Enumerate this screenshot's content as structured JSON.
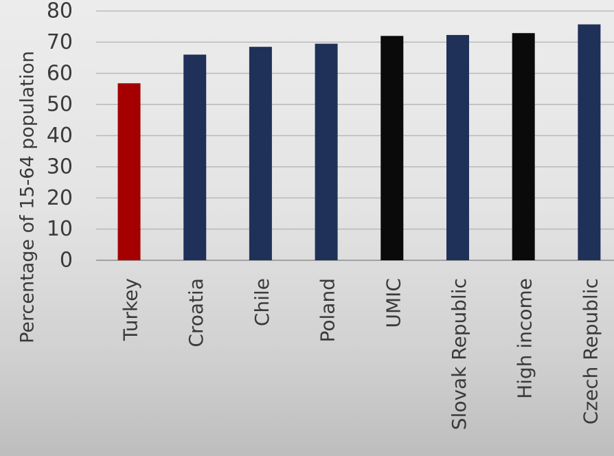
{
  "chart_data": {
    "type": "bar",
    "title": "",
    "xlabel": "",
    "ylabel": "Percentage of 15-64 population",
    "ylim": [
      0,
      80
    ],
    "yticks": [
      0,
      10,
      20,
      30,
      40,
      50,
      60,
      70,
      80
    ],
    "grid": true,
    "categories": [
      "Turkey",
      "Croatia",
      "Chile",
      "Poland",
      "UMIC",
      "Slovak Republic",
      "High income",
      "Czech Republic"
    ],
    "values": [
      56.8,
      66.0,
      68.5,
      69.5,
      72.0,
      72.3,
      72.9,
      75.7
    ],
    "bar_colors": [
      "#a50000",
      "#1f3158",
      "#1f3158",
      "#1f3158",
      "#0a0a0a",
      "#1f3158",
      "#0a0a0a",
      "#1f3158"
    ]
  }
}
